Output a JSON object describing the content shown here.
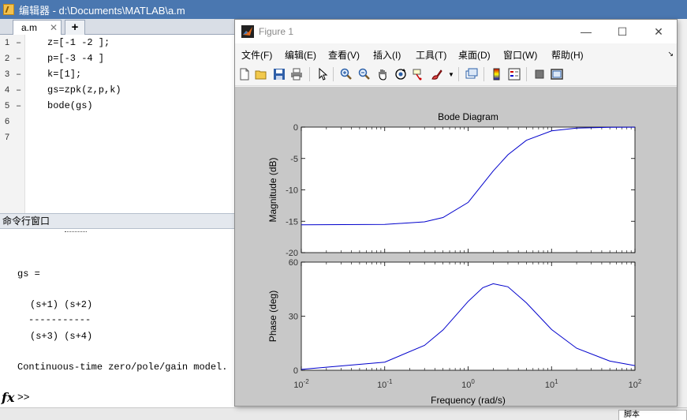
{
  "editor": {
    "title": "编辑器 - d:\\Documents\\MATLAB\\a.m",
    "tab_label": "a.m",
    "tab_close": "✕",
    "tab_add": "+",
    "lines": [
      {
        "num": "1",
        "dash": "–",
        "code": "z=[-1 -2 ];"
      },
      {
        "num": "2",
        "dash": "–",
        "code": "p=[-3 -4 ]"
      },
      {
        "num": "3",
        "dash": "–",
        "code": "k=[1];"
      },
      {
        "num": "4",
        "dash": "–",
        "code": "gs=zpk(z,p,k)"
      },
      {
        "num": "5",
        "dash": "–",
        "code": "bode(gs)"
      },
      {
        "num": "6",
        "dash": "",
        "code": ""
      },
      {
        "num": "7",
        "dash": "",
        "code": ""
      }
    ]
  },
  "command_window": {
    "title": "命令行窗口",
    "output": [
      "gs =",
      "(s+1) (s+2)",
      "-----------",
      "(s+3) (s+4)",
      "Continuous-time zero/pole/gain model."
    ],
    "fx": "fx",
    "prompt": ">>"
  },
  "statusbar": {
    "box_text": "脚本"
  },
  "figure": {
    "title": "Figure 1",
    "menus": [
      "文件(F)",
      "编辑(E)",
      "查看(V)",
      "插入(I)",
      "工具(T)",
      "桌面(D)",
      "窗口(W)",
      "帮助(H)"
    ],
    "toolbar_icons": [
      "new-figure-icon",
      "open-file-icon",
      "save-icon",
      "print-icon",
      "pointer-icon",
      "zoom-in-icon",
      "zoom-out-icon",
      "pan-icon",
      "rotate-icon",
      "data-cursor-icon",
      "brush-icon",
      "link-plot-icon",
      "colorbar-icon",
      "legend-icon",
      "hide-plot-tools-icon",
      "show-plot-tools-icon"
    ]
  },
  "chart_data": {
    "type": "line",
    "title": "Bode Diagram",
    "xlabel": "Frequency  (rad/s)",
    "xscale": "log",
    "xlim": [
      0.01,
      100
    ],
    "xtick_labels": [
      "10-2",
      "10-1",
      "100",
      "101",
      "102"
    ],
    "line_color": "#0000cc",
    "subplots": [
      {
        "ylabel": "Magnitude (dB)",
        "ylim": [
          -20,
          0
        ],
        "yticks": [
          "0",
          "-5",
          "-10",
          "-15",
          "-20"
        ],
        "ytick_values": [
          0,
          -5,
          -10,
          -15,
          -20
        ],
        "x": [
          0.01,
          0.1,
          0.3,
          0.5,
          1,
          2,
          3,
          5,
          10,
          20,
          50,
          100
        ],
        "y": [
          -15.56,
          -15.51,
          -15.1,
          -14.4,
          -12.0,
          -7.0,
          -4.4,
          -2.1,
          -0.6,
          -0.15,
          -0.03,
          -0.01
        ]
      },
      {
        "ylabel": "Phase (deg)",
        "ylim": [
          0,
          60
        ],
        "yticks": [
          "60",
          "30",
          "0"
        ],
        "ytick_values": [
          60,
          30,
          0
        ],
        "x": [
          0.01,
          0.1,
          0.3,
          0.5,
          1,
          1.5,
          2,
          3,
          5,
          10,
          20,
          50,
          100
        ],
        "y": [
          0.5,
          4.5,
          13.8,
          22.4,
          38.2,
          45.8,
          48.0,
          46.3,
          37.4,
          22.6,
          12.2,
          5.1,
          2.6
        ]
      }
    ]
  }
}
